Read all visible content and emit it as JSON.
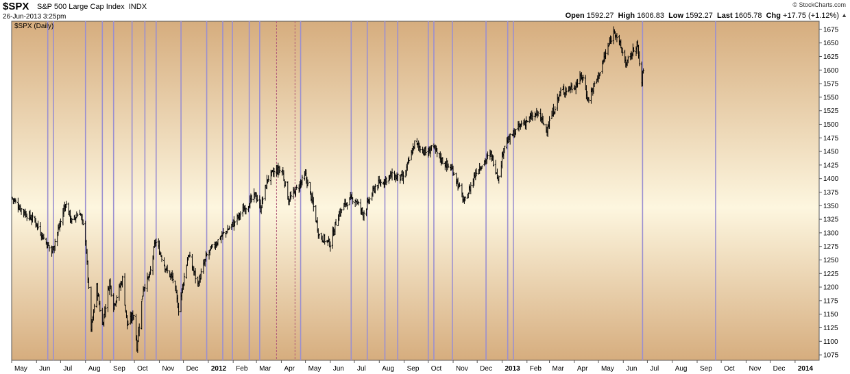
{
  "header": {
    "symbol": "$SPX",
    "index_name": "S&P 500 Large Cap Index",
    "exchange": "INDX",
    "datetime": "26-Jun-2013 3:25pm",
    "brand": "© StockCharts.com",
    "open_label": "Open",
    "open": "1592.27",
    "high_label": "High",
    "high": "1606.83",
    "low_label": "Low",
    "low": "1592.27",
    "last_label": "Last",
    "last": "1605.78",
    "chg_label": "Chg",
    "chg": "+17.75 (+1.12%)"
  },
  "chart_data": {
    "type": "ohlc",
    "series_label": "$SPX (Daily)",
    "ylim": [
      1065,
      1690
    ],
    "yticks": [
      1075,
      1100,
      1125,
      1150,
      1175,
      1200,
      1225,
      1250,
      1275,
      1300,
      1325,
      1350,
      1375,
      1400,
      1425,
      1450,
      1475,
      1500,
      1525,
      1550,
      1575,
      1600,
      1625,
      1650,
      1675
    ],
    "xlim": [
      "2011-05-01",
      "2014-01-31"
    ],
    "xticks": [
      {
        "date": "2011-05-01",
        "label": "May"
      },
      {
        "date": "2011-06-01",
        "label": "Jun"
      },
      {
        "date": "2011-07-01",
        "label": "Jul"
      },
      {
        "date": "2011-08-01",
        "label": "Aug"
      },
      {
        "date": "2011-09-01",
        "label": "Sep"
      },
      {
        "date": "2011-10-01",
        "label": "Oct"
      },
      {
        "date": "2011-11-01",
        "label": "Nov"
      },
      {
        "date": "2011-12-01",
        "label": "Dec"
      },
      {
        "date": "2012-01-01",
        "label": "2012",
        "bold": true
      },
      {
        "date": "2012-02-01",
        "label": "Feb"
      },
      {
        "date": "2012-03-01",
        "label": "Mar"
      },
      {
        "date": "2012-04-01",
        "label": "Apr"
      },
      {
        "date": "2012-05-01",
        "label": "May"
      },
      {
        "date": "2012-06-01",
        "label": "Jun"
      },
      {
        "date": "2012-07-01",
        "label": "Jul"
      },
      {
        "date": "2012-08-01",
        "label": "Aug"
      },
      {
        "date": "2012-09-01",
        "label": "Sep"
      },
      {
        "date": "2012-10-01",
        "label": "Oct"
      },
      {
        "date": "2012-11-01",
        "label": "Nov"
      },
      {
        "date": "2012-12-01",
        "label": "Dec"
      },
      {
        "date": "2013-01-01",
        "label": "2013",
        "bold": true
      },
      {
        "date": "2013-02-01",
        "label": "Feb"
      },
      {
        "date": "2013-03-01",
        "label": "Mar"
      },
      {
        "date": "2013-04-01",
        "label": "Apr"
      },
      {
        "date": "2013-05-01",
        "label": "May"
      },
      {
        "date": "2013-06-01",
        "label": "Jun"
      },
      {
        "date": "2013-07-01",
        "label": "Jul"
      },
      {
        "date": "2013-08-01",
        "label": "Aug"
      },
      {
        "date": "2013-09-01",
        "label": "Sep"
      },
      {
        "date": "2013-10-01",
        "label": "Oct"
      },
      {
        "date": "2013-11-01",
        "label": "Nov"
      },
      {
        "date": "2013-12-01",
        "label": "Dec"
      },
      {
        "date": "2014-01-01",
        "label": "2014",
        "bold": true
      }
    ],
    "price_path": [
      [
        "2011-05-01",
        1365
      ],
      [
        "2011-05-15",
        1340
      ],
      [
        "2011-05-31",
        1320
      ],
      [
        "2011-06-10",
        1290
      ],
      [
        "2011-06-20",
        1265
      ],
      [
        "2011-07-01",
        1320
      ],
      [
        "2011-07-07",
        1355
      ],
      [
        "2011-07-15",
        1320
      ],
      [
        "2011-07-25",
        1340
      ],
      [
        "2011-08-01",
        1290
      ],
      [
        "2011-08-08",
        1120
      ],
      [
        "2011-08-15",
        1200
      ],
      [
        "2011-08-22",
        1130
      ],
      [
        "2011-08-31",
        1210
      ],
      [
        "2011-09-05",
        1165
      ],
      [
        "2011-09-16",
        1215
      ],
      [
        "2011-09-22",
        1130
      ],
      [
        "2011-09-30",
        1150
      ],
      [
        "2011-10-04",
        1090
      ],
      [
        "2011-10-12",
        1200
      ],
      [
        "2011-10-20",
        1220
      ],
      [
        "2011-10-27",
        1285
      ],
      [
        "2011-11-03",
        1260
      ],
      [
        "2011-11-10",
        1230
      ],
      [
        "2011-11-18",
        1215
      ],
      [
        "2011-11-25",
        1160
      ],
      [
        "2011-12-07",
        1260
      ],
      [
        "2011-12-19",
        1205
      ],
      [
        "2011-12-30",
        1258
      ],
      [
        "2012-01-15",
        1290
      ],
      [
        "2012-01-31",
        1315
      ],
      [
        "2012-02-15",
        1345
      ],
      [
        "2012-02-29",
        1370
      ],
      [
        "2012-03-06",
        1345
      ],
      [
        "2012-03-15",
        1400
      ],
      [
        "2012-03-26",
        1415
      ],
      [
        "2012-04-02",
        1415
      ],
      [
        "2012-04-10",
        1360
      ],
      [
        "2012-04-20",
        1380
      ],
      [
        "2012-05-01",
        1405
      ],
      [
        "2012-05-10",
        1355
      ],
      [
        "2012-05-18",
        1295
      ],
      [
        "2012-06-01",
        1280
      ],
      [
        "2012-06-10",
        1330
      ],
      [
        "2012-06-20",
        1355
      ],
      [
        "2012-07-01",
        1365
      ],
      [
        "2012-07-12",
        1335
      ],
      [
        "2012-07-27",
        1385
      ],
      [
        "2012-08-15",
        1405
      ],
      [
        "2012-08-31",
        1400
      ],
      [
        "2012-09-14",
        1465
      ],
      [
        "2012-10-01",
        1445
      ],
      [
        "2012-10-05",
        1460
      ],
      [
        "2012-10-20",
        1430
      ],
      [
        "2012-11-01",
        1415
      ],
      [
        "2012-11-15",
        1355
      ],
      [
        "2012-11-30",
        1415
      ],
      [
        "2012-12-18",
        1445
      ],
      [
        "2012-12-28",
        1400
      ],
      [
        "2013-01-03",
        1460
      ],
      [
        "2013-01-25",
        1500
      ],
      [
        "2013-02-15",
        1520
      ],
      [
        "2013-02-25",
        1490
      ],
      [
        "2013-03-15",
        1560
      ],
      [
        "2013-04-01",
        1570
      ],
      [
        "2013-04-11",
        1590
      ],
      [
        "2013-04-18",
        1545
      ],
      [
        "2013-05-01",
        1590
      ],
      [
        "2013-05-10",
        1630
      ],
      [
        "2013-05-21",
        1675
      ],
      [
        "2013-06-05",
        1610
      ],
      [
        "2013-06-18",
        1650
      ],
      [
        "2013-06-24",
        1575
      ],
      [
        "2013-06-26",
        1605
      ]
    ],
    "vertical_markers": [
      {
        "date": "2011-06-15"
      },
      {
        "date": "2011-06-22"
      },
      {
        "date": "2011-08-01"
      },
      {
        "date": "2011-08-22"
      },
      {
        "date": "2011-09-05"
      },
      {
        "date": "2011-09-28"
      },
      {
        "date": "2011-10-14"
      },
      {
        "date": "2011-10-28"
      },
      {
        "date": "2011-11-28"
      },
      {
        "date": "2011-12-30"
      },
      {
        "date": "2012-01-19"
      },
      {
        "date": "2012-01-31"
      },
      {
        "date": "2012-02-21"
      },
      {
        "date": "2012-03-05"
      },
      {
        "date": "2012-03-26",
        "dashed": true
      },
      {
        "date": "2012-04-18",
        "dashed": true
      },
      {
        "date": "2012-04-25"
      },
      {
        "date": "2012-06-27"
      },
      {
        "date": "2012-07-17"
      },
      {
        "date": "2012-08-08"
      },
      {
        "date": "2012-08-24"
      },
      {
        "date": "2012-10-01"
      },
      {
        "date": "2012-10-08"
      },
      {
        "date": "2012-10-31"
      },
      {
        "date": "2012-12-12"
      },
      {
        "date": "2013-01-08"
      },
      {
        "date": "2013-01-15"
      },
      {
        "date": "2013-06-25"
      },
      {
        "date": "2013-09-24"
      }
    ],
    "colors": {
      "up": "#000000",
      "marker": "#9a8fd0",
      "marker_dashed": "#b05a7a",
      "bg_mid": "#fdf6df",
      "bg_edge": "#d6ad7e"
    }
  }
}
